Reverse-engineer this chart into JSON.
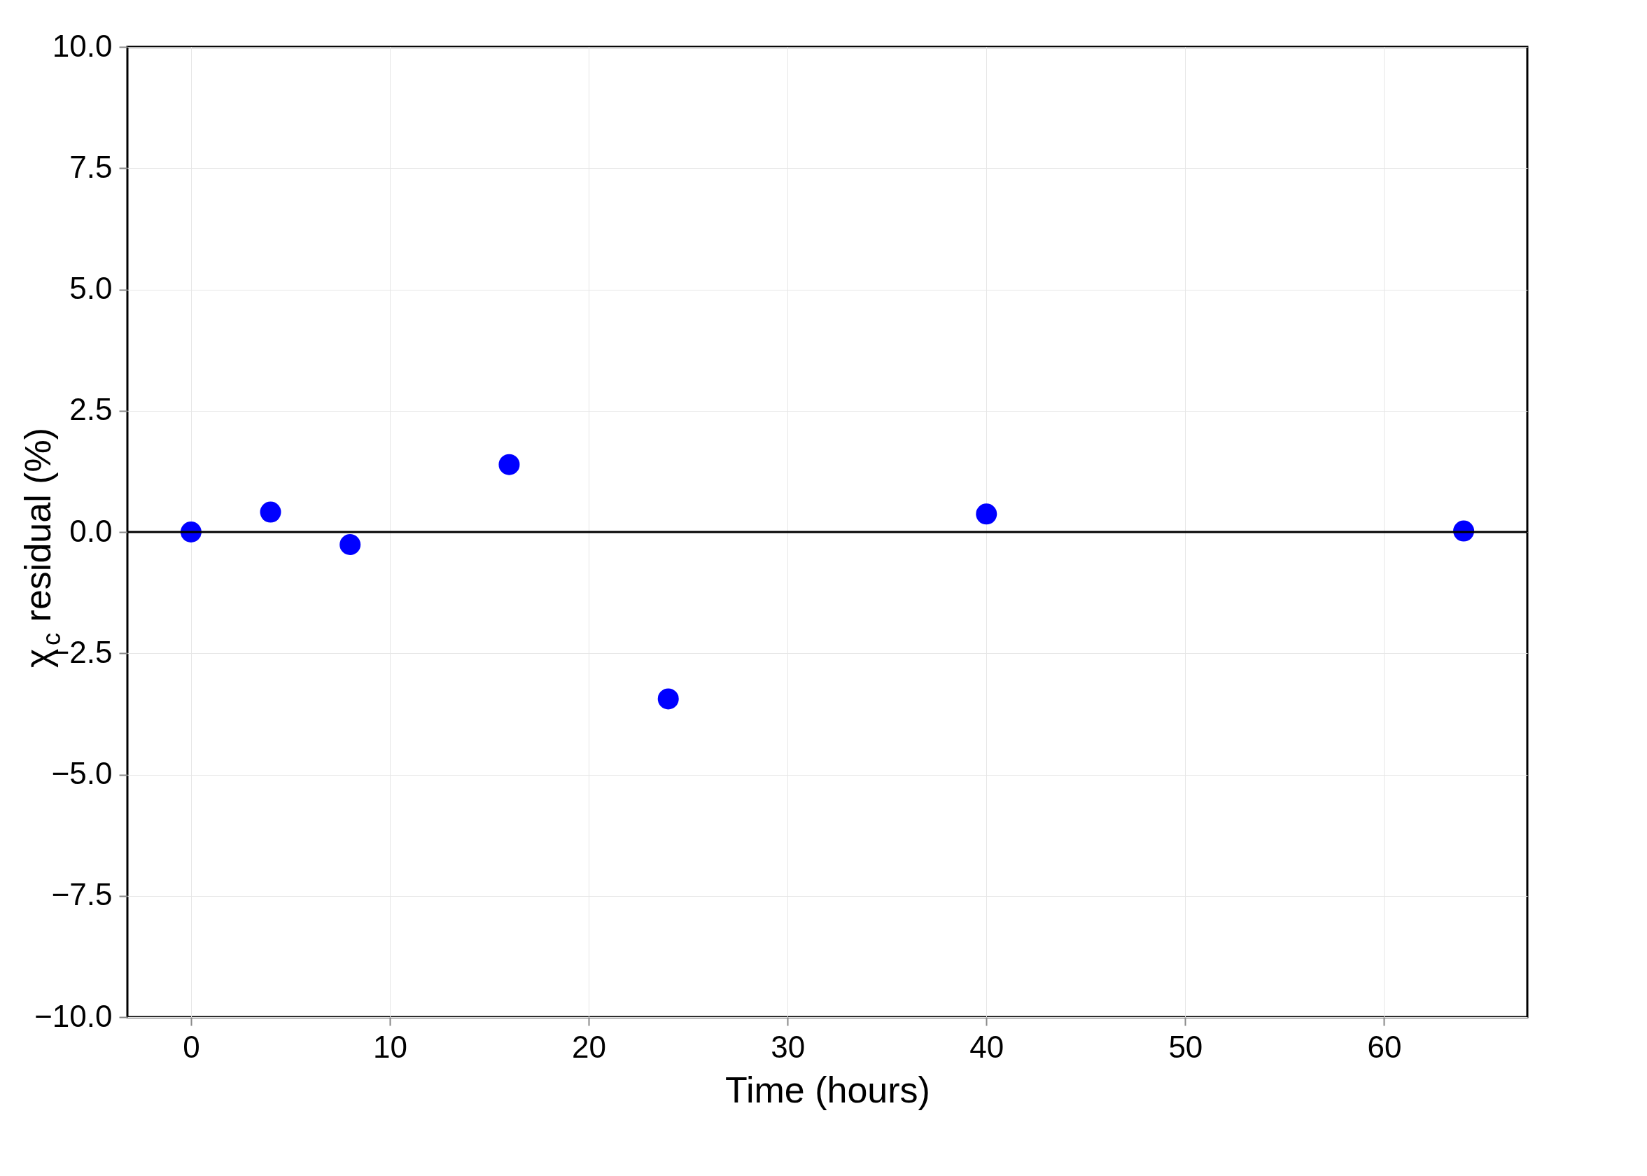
{
  "chart_data": {
    "type": "scatter",
    "xlabel": "Time (hours)",
    "ylabel": "χ$_{c}$ residual (%)",
    "x": [
      0,
      4,
      8,
      16,
      24,
      40,
      64
    ],
    "series": [
      {
        "color": "#0000ff",
        "values": [
          0,
          0.41,
          -0.26,
          1.39,
          -3.44,
          0.37,
          0.02
        ]
      }
    ],
    "xlim": [
      -3.2,
      67.2
    ],
    "xticks": [
      0,
      10,
      20,
      30,
      40,
      50,
      60
    ],
    "ylim": [
      -10,
      10
    ],
    "yticks": [
      {
        "value": -10,
        "label": "−10.0"
      },
      {
        "value": -7.5,
        "label": "−7.5"
      },
      {
        "value": -5,
        "label": "−5.0"
      },
      {
        "value": -2.5,
        "label": "−2.5"
      },
      {
        "value": 0,
        "label": "0.0"
      },
      {
        "value": 2.5,
        "label": "2.5"
      },
      {
        "value": 5,
        "label": "5.0"
      },
      {
        "value": 7.5,
        "label": "7.5"
      },
      {
        "value": 10,
        "label": "10.0"
      }
    ],
    "ref_lines": [
      {
        "axis": "y",
        "value": 0,
        "color": "#000000",
        "line_style": "solid"
      }
    ],
    "grid": true,
    "marker": "circle"
  }
}
